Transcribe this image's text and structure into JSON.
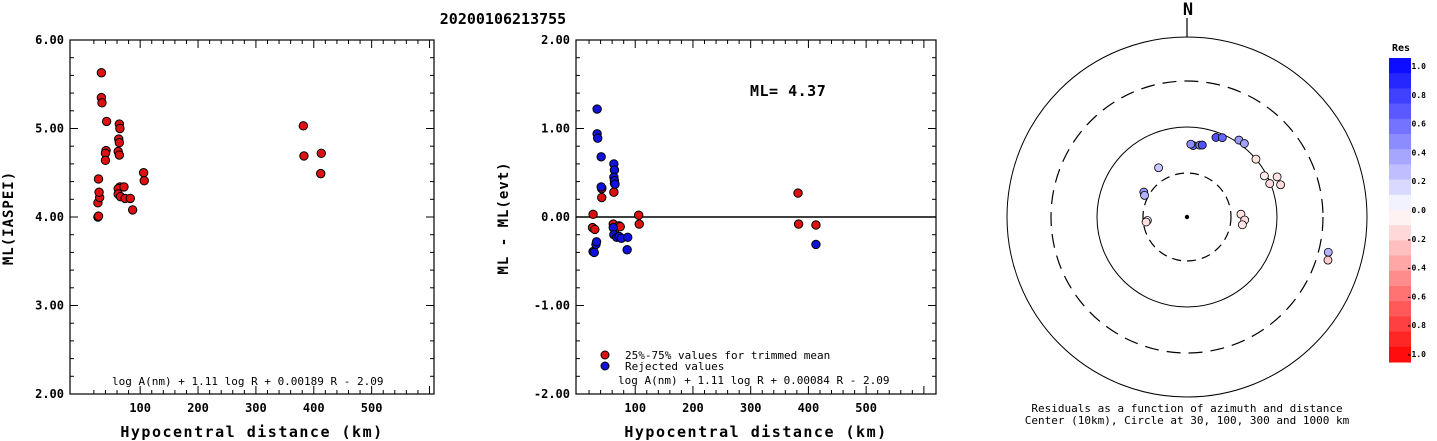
{
  "title": "20200106213755",
  "chart_data": [
    {
      "type": "scatter",
      "id": "left",
      "ylabel": "ML(IASPEI)",
      "xlabel": "Hypocentral distance (km)",
      "xlim": [
        0,
        600
      ],
      "ylim": [
        2.0,
        6.0
      ],
      "xticks": [
        "100",
        "200",
        "300",
        "400",
        "500"
      ],
      "yticks": [
        "2.00",
        "3.00",
        "4.00",
        "5.00",
        "6.00"
      ],
      "formula": "log A(nm) + 1.11 log R + 0.00189 R - 2.09",
      "series": [
        {
          "color": "#dd1111",
          "points": [
            [
              27,
              4.0
            ],
            [
              28,
              4.01
            ],
            [
              27,
              4.16
            ],
            [
              30,
              4.22
            ],
            [
              29,
              4.28
            ],
            [
              28,
              4.43
            ],
            [
              33,
              5.63
            ],
            [
              33,
              5.35
            ],
            [
              34,
              5.29
            ],
            [
              42,
              5.08
            ],
            [
              41,
              4.75
            ],
            [
              40,
              4.72
            ],
            [
              40,
              4.64
            ],
            [
              64,
              5.05
            ],
            [
              65,
              5.0
            ],
            [
              63,
              4.88
            ],
            [
              64,
              4.84
            ],
            [
              62,
              4.74
            ],
            [
              64,
              4.7
            ],
            [
              65,
              4.34
            ],
            [
              62,
              4.32
            ],
            [
              62,
              4.26
            ],
            [
              66,
              4.23
            ],
            [
              72,
              4.34
            ],
            [
              74,
              4.21
            ],
            [
              83,
              4.21
            ],
            [
              87,
              4.08
            ],
            [
              106,
              4.5
            ],
            [
              107,
              4.41
            ],
            [
              382,
              5.03
            ],
            [
              383,
              4.69
            ],
            [
              413,
              4.72
            ],
            [
              412,
              4.49
            ]
          ]
        }
      ]
    },
    {
      "type": "scatter",
      "id": "middle",
      "ylabel": "ML - ML(evt)",
      "xlabel": "Hypocentral distance (km)",
      "xlim": [
        0,
        600
      ],
      "ylim": [
        -2.0,
        2.0
      ],
      "xticks": [
        "100",
        "200",
        "300",
        "400",
        "500"
      ],
      "yticks": [
        "-2.00",
        "-1.00",
        "0.00",
        "1.00",
        "2.00"
      ],
      "annotation": "ML= 4.37",
      "formula": "log A(nm) + 1.11 log R + 0.00084 R - 2.09",
      "series": [
        {
          "name": "25%-75% values for trimmed mean",
          "color": "#dd1111",
          "points": [
            [
              27,
              0.03
            ],
            [
              26,
              -0.12
            ],
            [
              30,
              -0.14
            ],
            [
              42,
              0.22
            ],
            [
              42,
              0.33
            ],
            [
              42,
              0.32
            ],
            [
              64,
              0.38
            ],
            [
              63,
              0.28
            ],
            [
              62,
              -0.08
            ],
            [
              65,
              -0.14
            ],
            [
              72,
              -0.1
            ],
            [
              74,
              -0.11
            ],
            [
              106,
              0.02
            ],
            [
              107,
              -0.08
            ],
            [
              382,
              0.27
            ],
            [
              383,
              -0.08
            ],
            [
              413,
              -0.09
            ]
          ]
        },
        {
          "name": "Rejected values",
          "color": "#1111dd",
          "points": [
            [
              27,
              -0.39
            ],
            [
              29,
              -0.4
            ],
            [
              32,
              -0.31
            ],
            [
              33,
              -0.28
            ],
            [
              34,
              1.22
            ],
            [
              34,
              0.94
            ],
            [
              35,
              0.89
            ],
            [
              41,
              0.68
            ],
            [
              41,
              0.34
            ],
            [
              63,
              0.6
            ],
            [
              64,
              0.53
            ],
            [
              63,
              0.45
            ],
            [
              64,
              0.41
            ],
            [
              65,
              0.37
            ],
            [
              62,
              -0.12
            ],
            [
              63,
              -0.2
            ],
            [
              68,
              -0.23
            ],
            [
              72,
              -0.22
            ],
            [
              76,
              -0.24
            ],
            [
              87,
              -0.23
            ],
            [
              86,
              -0.37
            ],
            [
              413,
              -0.31
            ]
          ]
        }
      ]
    },
    {
      "type": "scatter",
      "id": "azimuth",
      "north_label": "N",
      "caption_line1": "Residuals as a function of azimuth and distance",
      "caption_line2": "Center (10km), Circle at 30, 100, 300 and 1000 km",
      "colorbar_title": "Res",
      "colorbar_ticks": [
        "1.0",
        "0.8",
        "0.6",
        "0.4",
        "0.2",
        "0.0",
        "-0.2",
        "-0.4",
        "-0.6",
        "-0.8",
        "-1.0"
      ],
      "rings_km": [
        30,
        100,
        300,
        1000
      ],
      "points": [
        {
          "az": 330,
          "dist": 42,
          "res": 0.22
        },
        {
          "az": 300,
          "dist": 35,
          "res": 0.4
        },
        {
          "az": 297,
          "dist": 33,
          "res": 0.3
        },
        {
          "az": 265,
          "dist": 27,
          "res": 0.03
        },
        {
          "az": 263,
          "dist": 28,
          "res": -0.12
        },
        {
          "az": 5,
          "dist": 62,
          "res": 0.6
        },
        {
          "az": 3,
          "dist": 64,
          "res": 0.45
        },
        {
          "az": 10,
          "dist": 64,
          "res": 0.53
        },
        {
          "az": 12,
          "dist": 65,
          "res": 0.68
        },
        {
          "az": 20,
          "dist": 87,
          "res": 0.68
        },
        {
          "az": 24,
          "dist": 92,
          "res": 0.6
        },
        {
          "az": 34,
          "dist": 107,
          "res": 0.4
        },
        {
          "az": 38,
          "dist": 108,
          "res": 0.37
        },
        {
          "az": 50,
          "dist": 100,
          "res": -0.1
        },
        {
          "az": 62,
          "dist": 94,
          "res": -0.08
        },
        {
          "az": 68,
          "dist": 98,
          "res": -0.14
        },
        {
          "az": 66,
          "dist": 123,
          "res": -0.11
        },
        {
          "az": 71,
          "dist": 124,
          "res": -0.14
        },
        {
          "az": 87,
          "dist": 39,
          "res": -0.12
        },
        {
          "az": 93,
          "dist": 43,
          "res": -0.14
        },
        {
          "az": 98,
          "dist": 41,
          "res": -0.1
        },
        {
          "az": 104,
          "dist": 390,
          "res": 0.3
        },
        {
          "az": 107,
          "dist": 410,
          "res": -0.2
        }
      ]
    }
  ]
}
